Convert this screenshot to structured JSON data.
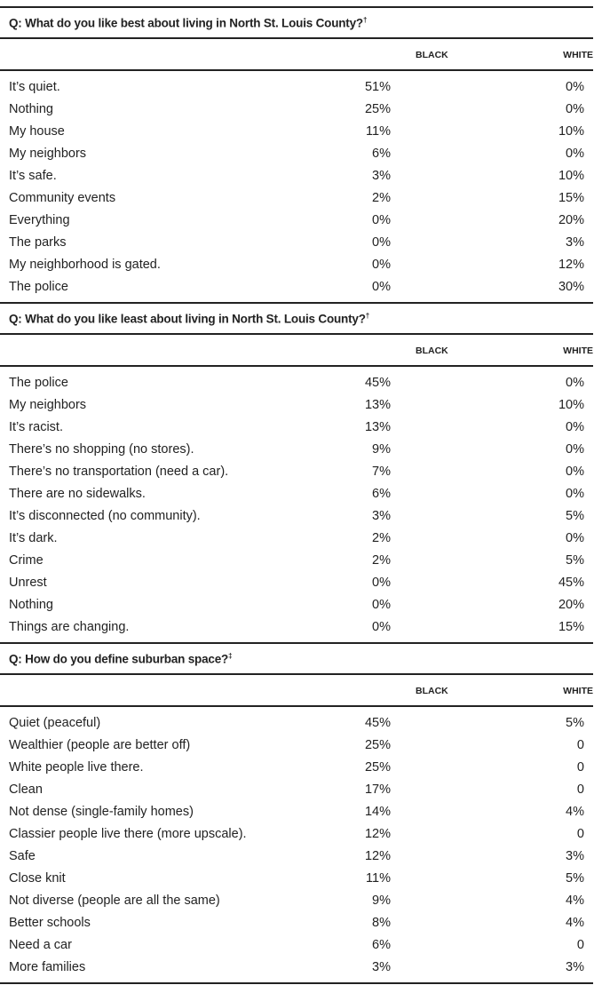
{
  "columns": {
    "black": "BLACK",
    "white": "WHITE"
  },
  "sections": [
    {
      "question": "Q: What do you like best about living in North St. Louis County?",
      "mark": "†",
      "rows": [
        {
          "label": "It’s quiet.",
          "black": "51%",
          "white": "0%"
        },
        {
          "label": "Nothing",
          "black": "25%",
          "white": "0%"
        },
        {
          "label": "My house",
          "black": "11%",
          "white": "10%"
        },
        {
          "label": "My neighbors",
          "black": "6%",
          "white": "0%"
        },
        {
          "label": "It’s safe.",
          "black": "3%",
          "white": "10%"
        },
        {
          "label": "Community events",
          "black": "2%",
          "white": "15%"
        },
        {
          "label": "Everything",
          "black": "0%",
          "white": "20%"
        },
        {
          "label": "The parks",
          "black": "0%",
          "white": "3%"
        },
        {
          "label": "My neighborhood is gated.",
          "black": "0%",
          "white": "12%"
        },
        {
          "label": "The police",
          "black": "0%",
          "white": "30%"
        }
      ]
    },
    {
      "question": "Q: What do you like least about living in North St. Louis County?",
      "mark": "†",
      "rows": [
        {
          "label": "The police",
          "black": "45%",
          "white": "0%"
        },
        {
          "label": "My neighbors",
          "black": "13%",
          "white": "10%"
        },
        {
          "label": "It’s racist.",
          "black": "13%",
          "white": "0%"
        },
        {
          "label": "There’s no shopping (no stores).",
          "black": "9%",
          "white": "0%"
        },
        {
          "label": "There’s no transportation (need a car).",
          "black": "7%",
          "white": "0%"
        },
        {
          "label": "There are no sidewalks.",
          "black": "6%",
          "white": "0%"
        },
        {
          "label": "It’s disconnected (no community).",
          "black": "3%",
          "white": "5%"
        },
        {
          "label": "It’s dark.",
          "black": "2%",
          "white": "0%"
        },
        {
          "label": "Crime",
          "black": "2%",
          "white": "5%"
        },
        {
          "label": "Unrest",
          "black": "0%",
          "white": "45%"
        },
        {
          "label": "Nothing",
          "black": "0%",
          "white": "20%"
        },
        {
          "label": "Things are changing.",
          "black": "0%",
          "white": "15%"
        }
      ]
    },
    {
      "question": "Q: How do you define suburban space?",
      "mark": "‡",
      "rows": [
        {
          "label": "Quiet (peaceful)",
          "black": "45%",
          "white": "5%"
        },
        {
          "label": "Wealthier (people are better off)",
          "black": "25%",
          "white": "0"
        },
        {
          "label": "White people live there.",
          "black": "25%",
          "white": "0"
        },
        {
          "label": "Clean",
          "black": "17%",
          "white": "0"
        },
        {
          "label": "Not dense (single-family homes)",
          "black": "14%",
          "white": "4%"
        },
        {
          "label": "Classier people live there (more upscale).",
          "black": "12%",
          "white": "0"
        },
        {
          "label": "Safe",
          "black": "12%",
          "white": "3%"
        },
        {
          "label": "Close knit",
          "black": "11%",
          "white": "5%"
        },
        {
          "label": "Not diverse (people are all the same)",
          "black": "9%",
          "white": "4%"
        },
        {
          "label": "Better schools",
          "black": "8%",
          "white": "4%"
        },
        {
          "label": "Need a car",
          "black": "6%",
          "white": "0"
        },
        {
          "label": "More families",
          "black": "3%",
          "white": "3%"
        }
      ]
    }
  ]
}
